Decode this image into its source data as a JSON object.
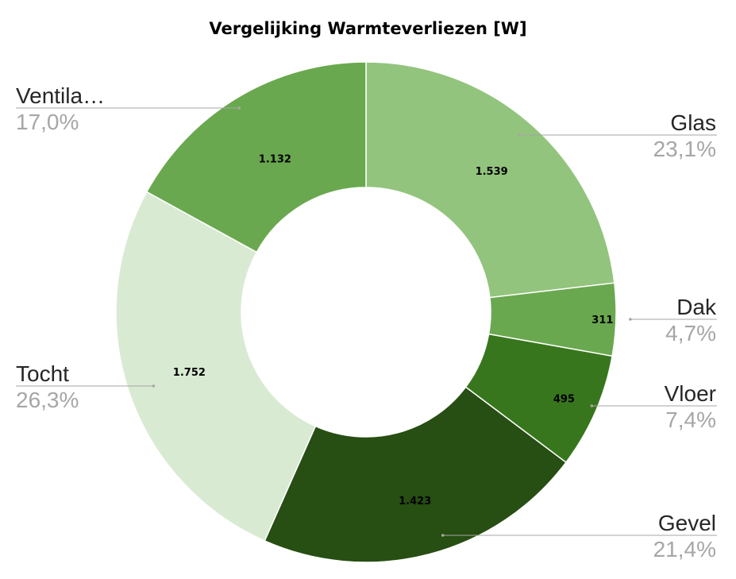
{
  "chart_data": {
    "type": "pie",
    "variant": "donut",
    "title": "Vergelijking Warmteverliezen [W]",
    "categories": [
      "Glas",
      "Dak",
      "Vloer",
      "Gevel",
      "Tocht",
      "Ventila…"
    ],
    "values": [
      1539,
      311,
      495,
      1423,
      1752,
      1132
    ],
    "value_labels": [
      "1.539",
      "311",
      "495",
      "1.423",
      "1.752",
      "1.132"
    ],
    "percent_labels": [
      "23,1%",
      "4,7%",
      "7,4%",
      "21,4%",
      "26,3%",
      "17,0%"
    ],
    "colors": [
      "#93c47d",
      "#6aa84f",
      "#38761d",
      "#274e13",
      "#d9ead3",
      "#6aa84f"
    ],
    "legend": "none"
  }
}
